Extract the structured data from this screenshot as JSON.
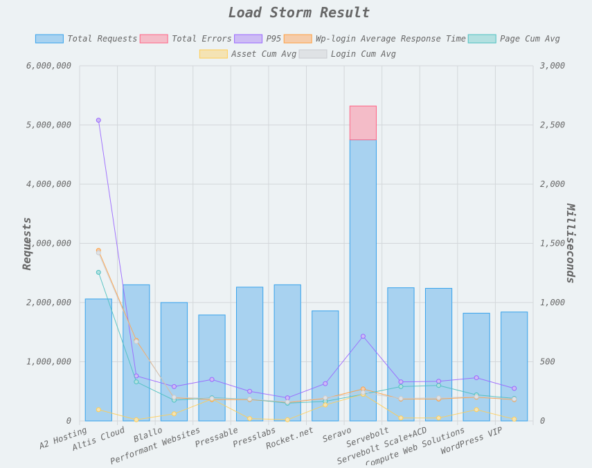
{
  "chart_data": {
    "type": "bar",
    "title": "Load Storm Result",
    "ylabel_left": "Requests",
    "ylabel_right": "Milliseconds",
    "ylim_left": [
      0,
      6000000
    ],
    "ylim_right": [
      0,
      3000
    ],
    "yticks_left": [
      "0",
      "1,000,000",
      "2,000,000",
      "3,000,000",
      "4,000,000",
      "5,000,000",
      "6,000,000"
    ],
    "yticks_right": [
      "0",
      "500",
      "1,000",
      "1,500",
      "2,000",
      "2,500",
      "3,000"
    ],
    "grid": true,
    "legend_position": "top",
    "categories": [
      "A2 Hosting",
      "Altis Cloud",
      "Blallo",
      "Performant Websites",
      "Pressable",
      "Presslabs",
      "Rocket.net",
      "Seravo",
      "Servebolt",
      "Servebolt Scale+ACD",
      "Compute Web Solutions",
      "WordPress VIP"
    ],
    "bar_series": [
      {
        "name": "Total Requests",
        "color": "#36a2eb",
        "fill": "#a8d2f0",
        "values": [
          2060000,
          2300000,
          2000000,
          1790000,
          2260000,
          2300000,
          1860000,
          4750000,
          2250000,
          2240000,
          1820000,
          1840000
        ]
      },
      {
        "name": "Total Errors",
        "color": "#ff6384",
        "fill": "#f4bcc8",
        "values": [
          0,
          0,
          0,
          0,
          0,
          0,
          0,
          570000,
          0,
          0,
          0,
          0
        ]
      }
    ],
    "line_series": [
      {
        "name": "P95",
        "color": "#9966ff",
        "fill": "#cdbcf4",
        "axis": "right",
        "values": [
          2540,
          380,
          290,
          350,
          250,
          195,
          315,
          715,
          330,
          335,
          365,
          275
        ]
      },
      {
        "name": "Wp-login Average Response Time",
        "color": "#ff9f40",
        "fill": "#f5ccaa",
        "axis": "right",
        "values": [
          1440,
          680,
          195,
          180,
          180,
          155,
          190,
          270,
          185,
          185,
          200,
          180
        ]
      },
      {
        "name": "Page Cum Avg",
        "color": "#4bc0c0",
        "fill": "#b3e0e0",
        "axis": "right",
        "values": [
          1255,
          330,
          175,
          195,
          185,
          150,
          165,
          225,
          290,
          300,
          220,
          190
        ]
      },
      {
        "name": "Asset Cum Avg",
        "color": "#ffcd56",
        "fill": "#f4e3b4",
        "axis": "right",
        "values": [
          95,
          10,
          60,
          185,
          20,
          10,
          135,
          225,
          25,
          25,
          95,
          15
        ]
      },
      {
        "name": "Login Cum Avg",
        "color": "#c9cbcf",
        "fill": "#dfe2e5",
        "axis": "right",
        "values": [
          1420,
          670,
          200,
          190,
          185,
          160,
          195,
          240,
          190,
          195,
          205,
          185
        ]
      }
    ]
  }
}
